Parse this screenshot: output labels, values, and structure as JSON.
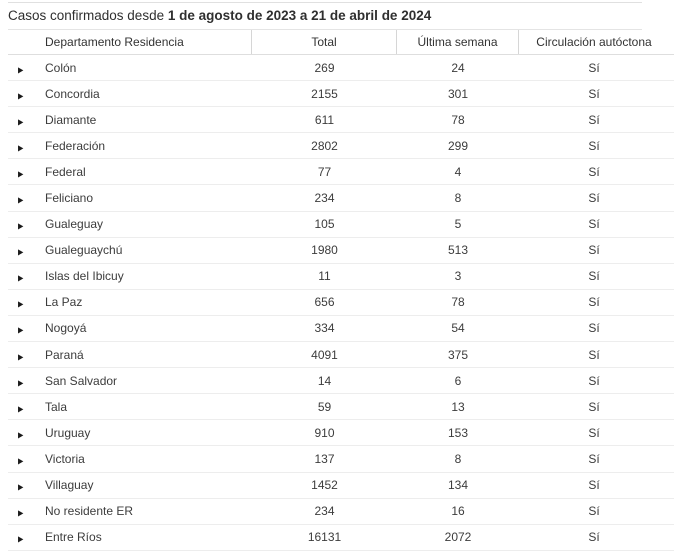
{
  "title": {
    "prefix": "Casos confirmados desde ",
    "period": "1 de agosto de 2023 a 21 de abril de 2024"
  },
  "table": {
    "columns": {
      "departamento": "Departamento Residencia",
      "total": "Total",
      "ultima_semana": "Última semana",
      "circulacion": "Circulación autóctona"
    },
    "expand_icon_glyph": "▶",
    "rows": [
      {
        "departamento": "Colón",
        "total": "269",
        "ultima_semana": "24",
        "circulacion": "Sí"
      },
      {
        "departamento": "Concordia",
        "total": "2155",
        "ultima_semana": "301",
        "circulacion": "Sí"
      },
      {
        "departamento": "Diamante",
        "total": "611",
        "ultima_semana": "78",
        "circulacion": "Sí"
      },
      {
        "departamento": "Federación",
        "total": "2802",
        "ultima_semana": "299",
        "circulacion": "Sí"
      },
      {
        "departamento": "Federal",
        "total": "77",
        "ultima_semana": "4",
        "circulacion": "Sí"
      },
      {
        "departamento": "Feliciano",
        "total": "234",
        "ultima_semana": "8",
        "circulacion": "Sí"
      },
      {
        "departamento": "Gualeguay",
        "total": "105",
        "ultima_semana": "5",
        "circulacion": "Sí"
      },
      {
        "departamento": "Gualeguaychú",
        "total": "1980",
        "ultima_semana": "513",
        "circulacion": "Sí"
      },
      {
        "departamento": "Islas del Ibicuy",
        "total": "11",
        "ultima_semana": "3",
        "circulacion": "Sí"
      },
      {
        "departamento": "La Paz",
        "total": "656",
        "ultima_semana": "78",
        "circulacion": "Sí"
      },
      {
        "departamento": "Nogoyá",
        "total": "334",
        "ultima_semana": "54",
        "circulacion": "Sí"
      },
      {
        "departamento": "Paraná",
        "total": "4091",
        "ultima_semana": "375",
        "circulacion": "Sí"
      },
      {
        "departamento": "San Salvador",
        "total": "14",
        "ultima_semana": "6",
        "circulacion": "Sí"
      },
      {
        "departamento": "Tala",
        "total": "59",
        "ultima_semana": "13",
        "circulacion": "Sí"
      },
      {
        "departamento": "Uruguay",
        "total": "910",
        "ultima_semana": "153",
        "circulacion": "Sí"
      },
      {
        "departamento": "Victoria",
        "total": "137",
        "ultima_semana": "8",
        "circulacion": "Sí"
      },
      {
        "departamento": "Villaguay",
        "total": "1452",
        "ultima_semana": "134",
        "circulacion": "Sí"
      },
      {
        "departamento": "No residente ER",
        "total": "234",
        "ultima_semana": "16",
        "circulacion": "Sí"
      },
      {
        "departamento": "Entre Ríos",
        "total": "16131",
        "ultima_semana": "2072",
        "circulacion": "Sí"
      }
    ]
  },
  "colors": {
    "text": "#3c3c3c",
    "title_text": "#2f2f2f",
    "grid_line": "#ededed",
    "header_line": "#dedede",
    "background": "#ffffff"
  }
}
